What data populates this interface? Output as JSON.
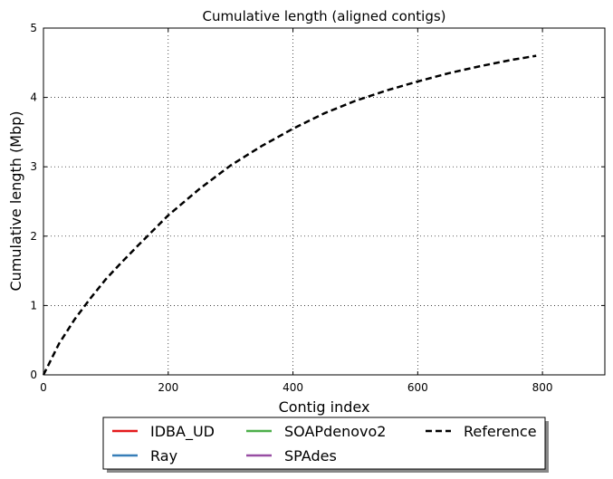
{
  "chart_data": {
    "type": "line",
    "title": "Cumulative length (aligned contigs)",
    "xlabel": "Contig index",
    "ylabel": "Cumulative length (Mbp)",
    "xlim": [
      0,
      900
    ],
    "ylim": [
      0,
      5
    ],
    "xticks": [
      "0",
      "200",
      "400",
      "600",
      "800"
    ],
    "yticks": [
      "0",
      "1",
      "2",
      "3",
      "4",
      "5"
    ],
    "grid": true,
    "legend_position": "bottom-center-outside",
    "series": [
      {
        "name": "IDBA_UD",
        "color": "#e41a1c",
        "style": "solid",
        "x": [],
        "y": []
      },
      {
        "name": "Ray",
        "color": "#377eb8",
        "style": "solid",
        "x": [],
        "y": []
      },
      {
        "name": "SOAPdenovo2",
        "color": "#4daf4a",
        "style": "solid",
        "x": [],
        "y": []
      },
      {
        "name": "SPAdes",
        "color": "#984ea3",
        "style": "solid",
        "x": [],
        "y": []
      },
      {
        "name": "Reference",
        "color": "#000000",
        "style": "dashed",
        "x": [
          0,
          10,
          25,
          50,
          75,
          100,
          125,
          150,
          200,
          250,
          300,
          350,
          400,
          450,
          500,
          550,
          600,
          650,
          700,
          750,
          790
        ],
        "y": [
          0,
          0.18,
          0.45,
          0.8,
          1.1,
          1.38,
          1.62,
          1.85,
          2.3,
          2.68,
          3.02,
          3.3,
          3.55,
          3.77,
          3.95,
          4.1,
          4.23,
          4.35,
          4.45,
          4.54,
          4.6
        ]
      }
    ]
  }
}
